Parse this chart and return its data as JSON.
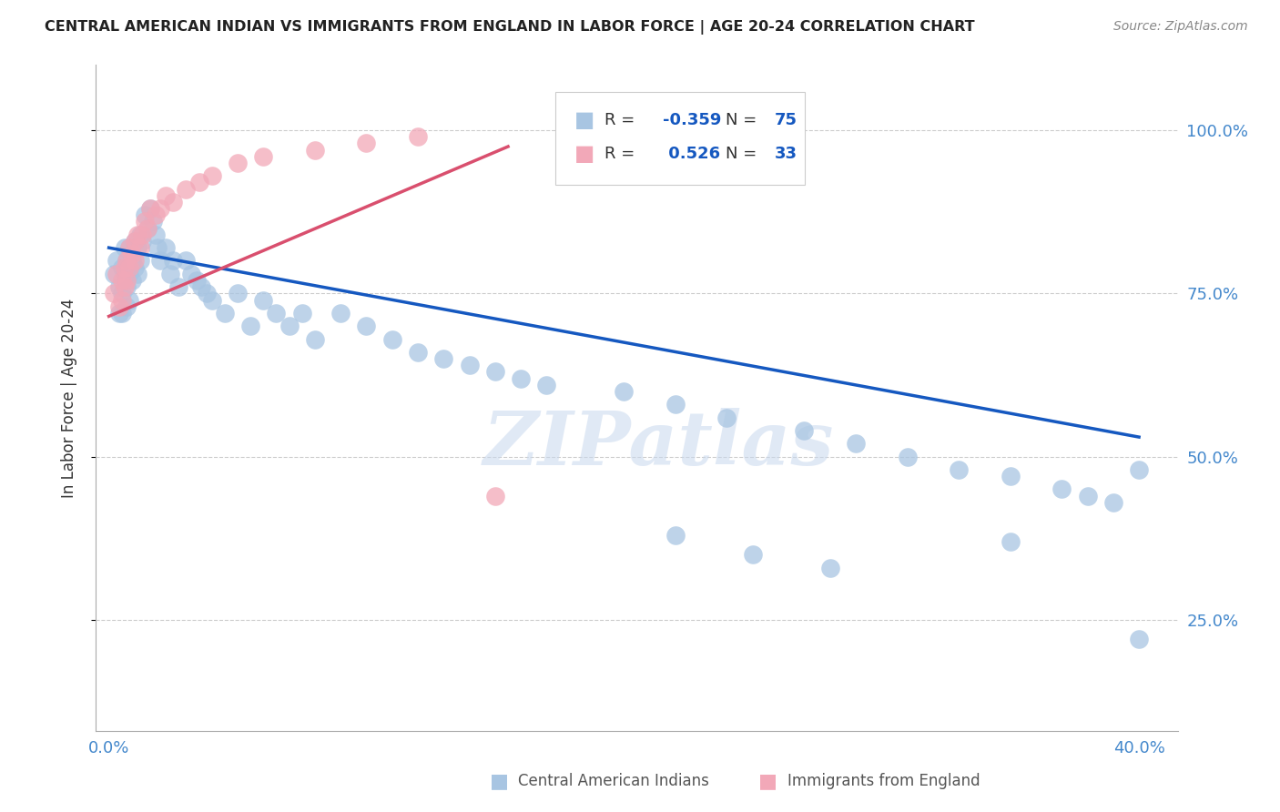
{
  "title": "CENTRAL AMERICAN INDIAN VS IMMIGRANTS FROM ENGLAND IN LABOR FORCE | AGE 20-24 CORRELATION CHART",
  "source_text": "Source: ZipAtlas.com",
  "ylabel": "In Labor Force | Age 20-24",
  "watermark": "ZIPatlas",
  "xlim": [
    -0.005,
    0.415
  ],
  "ylim": [
    0.08,
    1.1
  ],
  "x_ticks": [
    0.0,
    0.05,
    0.1,
    0.15,
    0.2,
    0.25,
    0.3,
    0.35,
    0.4
  ],
  "y_ticks": [
    0.25,
    0.5,
    0.75,
    1.0
  ],
  "y_tick_labels": [
    "25.0%",
    "50.0%",
    "75.0%",
    "100.0%"
  ],
  "blue_R": -0.359,
  "blue_N": 75,
  "pink_R": 0.526,
  "pink_N": 33,
  "blue_color": "#a8c5e2",
  "pink_color": "#f2a8b8",
  "blue_line_color": "#1558c0",
  "pink_line_color": "#d94f6e",
  "legend_label_blue": "Central American Indians",
  "legend_label_pink": "Immigrants from England",
  "blue_x": [
    0.002,
    0.003,
    0.004,
    0.004,
    0.005,
    0.005,
    0.005,
    0.006,
    0.006,
    0.007,
    0.007,
    0.007,
    0.008,
    0.008,
    0.008,
    0.009,
    0.009,
    0.01,
    0.01,
    0.011,
    0.011,
    0.012,
    0.012,
    0.013,
    0.014,
    0.015,
    0.016,
    0.017,
    0.018,
    0.019,
    0.02,
    0.022,
    0.024,
    0.025,
    0.027,
    0.03,
    0.032,
    0.034,
    0.036,
    0.038,
    0.04,
    0.045,
    0.05,
    0.055,
    0.06,
    0.065,
    0.07,
    0.075,
    0.08,
    0.09,
    0.1,
    0.11,
    0.12,
    0.13,
    0.14,
    0.15,
    0.16,
    0.17,
    0.2,
    0.22,
    0.24,
    0.27,
    0.29,
    0.31,
    0.33,
    0.35,
    0.37,
    0.38,
    0.39,
    0.4,
    0.22,
    0.25,
    0.28,
    0.35,
    0.4
  ],
  "blue_y": [
    0.78,
    0.8,
    0.76,
    0.72,
    0.79,
    0.75,
    0.72,
    0.82,
    0.78,
    0.8,
    0.76,
    0.73,
    0.82,
    0.78,
    0.74,
    0.8,
    0.77,
    0.83,
    0.79,
    0.82,
    0.78,
    0.84,
    0.8,
    0.83,
    0.87,
    0.85,
    0.88,
    0.86,
    0.84,
    0.82,
    0.8,
    0.82,
    0.78,
    0.8,
    0.76,
    0.8,
    0.78,
    0.77,
    0.76,
    0.75,
    0.74,
    0.72,
    0.75,
    0.7,
    0.74,
    0.72,
    0.7,
    0.72,
    0.68,
    0.72,
    0.7,
    0.68,
    0.66,
    0.65,
    0.64,
    0.63,
    0.62,
    0.61,
    0.6,
    0.58,
    0.56,
    0.54,
    0.52,
    0.5,
    0.48,
    0.47,
    0.45,
    0.44,
    0.43,
    0.48,
    0.38,
    0.35,
    0.33,
    0.37,
    0.22
  ],
  "pink_x": [
    0.002,
    0.003,
    0.004,
    0.005,
    0.005,
    0.006,
    0.006,
    0.007,
    0.007,
    0.008,
    0.008,
    0.009,
    0.01,
    0.01,
    0.011,
    0.012,
    0.013,
    0.014,
    0.015,
    0.016,
    0.018,
    0.02,
    0.022,
    0.025,
    0.03,
    0.035,
    0.04,
    0.05,
    0.06,
    0.08,
    0.1,
    0.12,
    0.15
  ],
  "pink_y": [
    0.75,
    0.78,
    0.73,
    0.77,
    0.74,
    0.79,
    0.76,
    0.8,
    0.77,
    0.82,
    0.79,
    0.81,
    0.83,
    0.8,
    0.84,
    0.82,
    0.84,
    0.86,
    0.85,
    0.88,
    0.87,
    0.88,
    0.9,
    0.89,
    0.91,
    0.92,
    0.93,
    0.95,
    0.96,
    0.97,
    0.98,
    0.99,
    0.44
  ],
  "blue_line_x": [
    0.0,
    0.4
  ],
  "blue_line_y": [
    0.82,
    0.53
  ],
  "pink_line_x": [
    0.0,
    0.155
  ],
  "pink_line_y": [
    0.715,
    0.975
  ]
}
